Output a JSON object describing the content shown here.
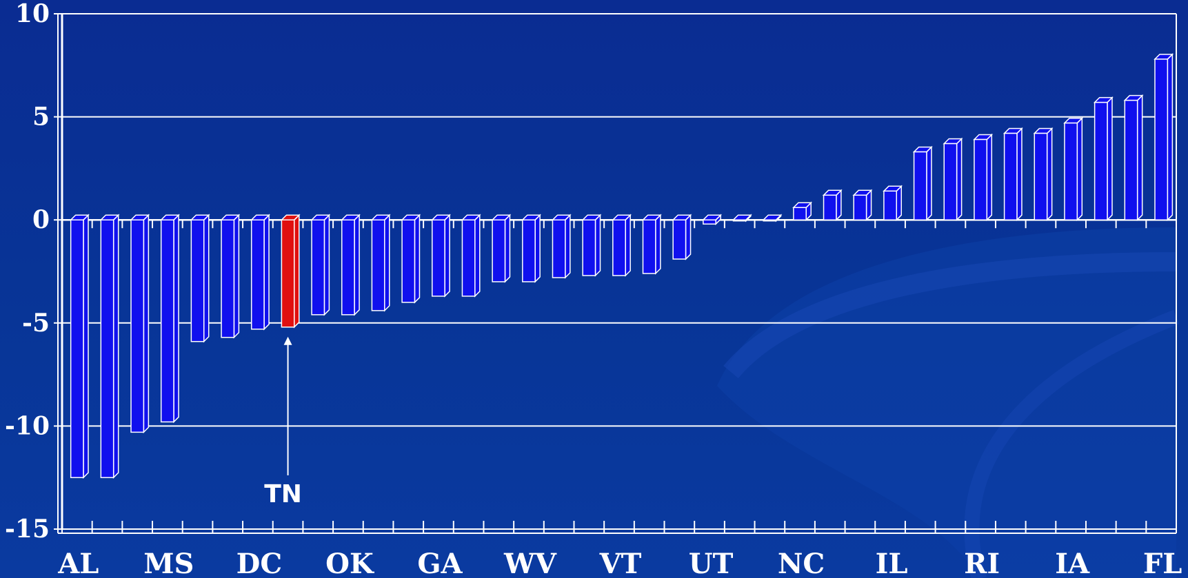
{
  "chart_data": {
    "type": "bar",
    "title": "",
    "xlabel": "",
    "ylabel": "",
    "ylim": [
      -15,
      10
    ],
    "yticks": [
      10,
      5,
      0,
      -5,
      -10,
      -15
    ],
    "grid": true,
    "x_tick_labels": [
      {
        "index": 0,
        "label": "AL"
      },
      {
        "index": 3,
        "label": "MS"
      },
      {
        "index": 6,
        "label": "DC"
      },
      {
        "index": 9,
        "label": "OK"
      },
      {
        "index": 12,
        "label": "GA"
      },
      {
        "index": 15,
        "label": "WV"
      },
      {
        "index": 18,
        "label": "VT"
      },
      {
        "index": 21,
        "label": "UT"
      },
      {
        "index": 24,
        "label": "NC"
      },
      {
        "index": 27,
        "label": "IL"
      },
      {
        "index": 30,
        "label": "RI"
      },
      {
        "index": 33,
        "label": "IA"
      },
      {
        "index": 36,
        "label": "FL"
      }
    ],
    "values": [
      -12.5,
      -12.5,
      -10.3,
      -9.8,
      -5.9,
      -5.7,
      -5.3,
      -5.2,
      -4.6,
      -4.6,
      -4.4,
      -4.0,
      -3.7,
      -3.7,
      -3.0,
      -3.0,
      -2.8,
      -2.7,
      -2.7,
      -2.6,
      -1.9,
      -0.2,
      0.0,
      0.0,
      0.6,
      1.2,
      1.2,
      1.4,
      3.3,
      3.7,
      3.9,
      4.2,
      4.2,
      4.7,
      5.7,
      5.8,
      7.8
    ],
    "highlight_index": 7,
    "colors": {
      "bar": "#1010ee",
      "highlight": "#e01010",
      "outline": "#ffffff",
      "grid": "#ffffff"
    },
    "annotations": [
      {
        "text": "TN",
        "target_index": 7
      }
    ]
  }
}
